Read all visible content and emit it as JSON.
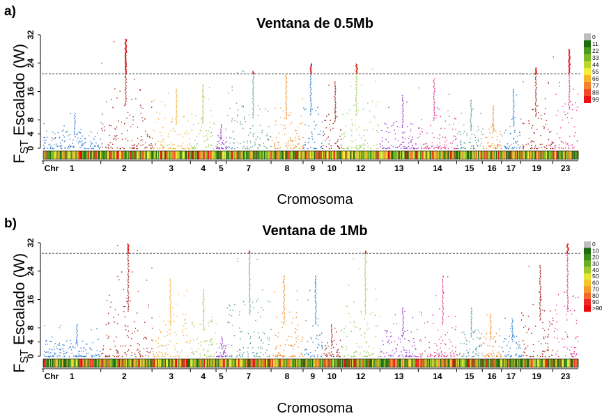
{
  "chart_data": [
    {
      "type": "scatter",
      "panel": "a)",
      "title": "Ventana de 0.5Mb",
      "ylabel_main": "F",
      "ylabel_sub": "ST",
      "ylabel_rest": " Escalado (W)",
      "xlabel": "Cromosoma",
      "ylim": [
        0,
        32
      ],
      "yticks": [
        0,
        4,
        8,
        16,
        24,
        32
      ],
      "threshold": 21,
      "chr_label_prefix": "Chr",
      "chromosomes": [
        "1",
        "2",
        "3",
        "4",
        "5",
        "7",
        "8",
        "9",
        "10",
        "12",
        "13",
        "14",
        "15",
        "16",
        "17",
        "19",
        "23"
      ],
      "chromosome_peaks": [
        10,
        31,
        17,
        18,
        7,
        22,
        21,
        24,
        19,
        24,
        15,
        20,
        14,
        12,
        17,
        23,
        28
      ],
      "legend_entries": [
        "0",
        "11",
        "22",
        "33",
        "44",
        "55",
        "66",
        "77",
        "88",
        "99"
      ],
      "legend_colors": [
        "#bfbfbf",
        "#1f6b0f",
        "#4a9a1f",
        "#7dbb26",
        "#b9d62e",
        "#f4ec3a",
        "#f6b62a",
        "#f4822a",
        "#f04a2a",
        "#ee1111"
      ]
    },
    {
      "type": "scatter",
      "panel": "b)",
      "title": "Ventana de 1Mb",
      "ylabel_main": "F",
      "ylabel_sub": "ST",
      "ylabel_rest": " Escalado (W)",
      "xlabel": "Cromosoma",
      "ylim": [
        0,
        32
      ],
      "yticks": [
        0,
        4,
        8,
        16,
        24,
        32
      ],
      "threshold": 29,
      "chr_label_prefix": "Chr",
      "chromosomes": [
        "1",
        "2",
        "3",
        "4",
        "5",
        "7",
        "8",
        "9",
        "10",
        "12",
        "13",
        "14",
        "15",
        "16",
        "17",
        "19",
        "23"
      ],
      "chromosome_peaks": [
        9,
        32,
        22,
        19,
        6,
        30,
        23,
        23,
        9,
        30,
        14,
        23,
        14,
        12,
        11,
        26,
        32
      ],
      "legend_entries": [
        "0",
        "10",
        "20",
        "30",
        "40",
        "50",
        "60",
        "70",
        "80",
        "90",
        ">90"
      ],
      "legend_colors": [
        "#bfbfbf",
        "#1f6b0f",
        "#3d8e1a",
        "#6aae22",
        "#9fcc2a",
        "#e6e63a",
        "#f6c22e",
        "#f69a2a",
        "#f4682a",
        "#f02a22",
        "#e80c0c"
      ]
    }
  ]
}
